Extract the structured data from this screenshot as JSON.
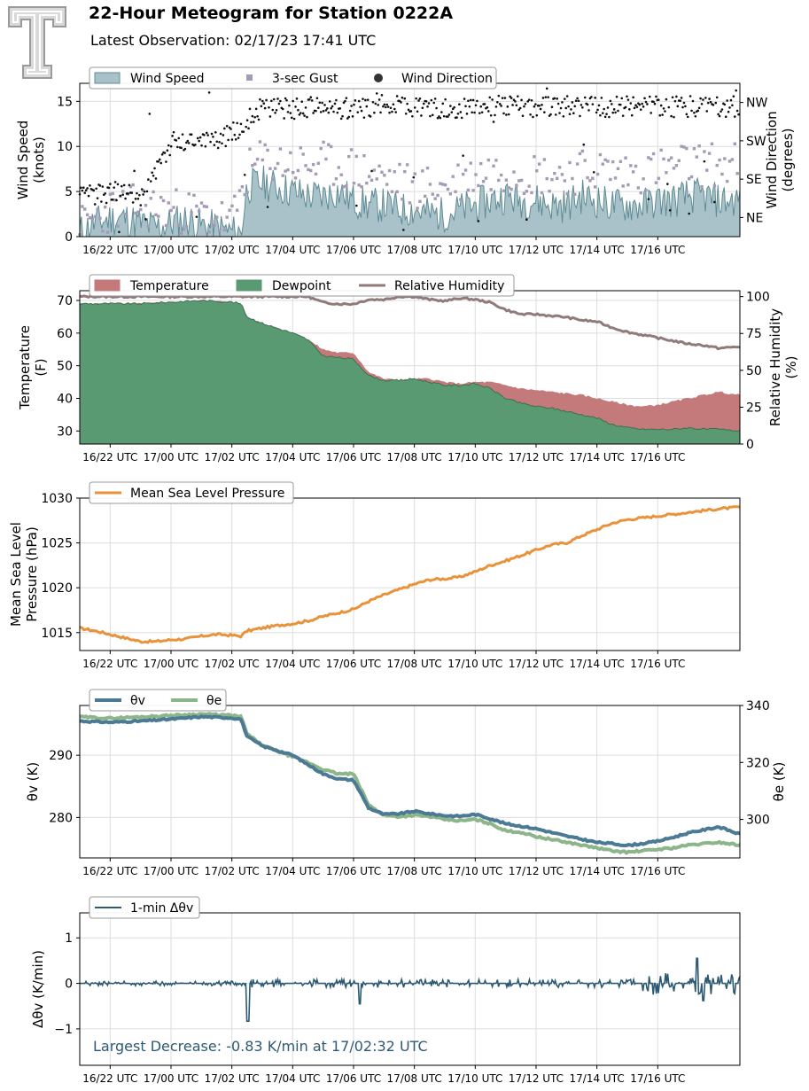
{
  "header": {
    "title": "22-Hour Meteogram for Station 0222A",
    "subtitle": "Latest Observation: 02/17/23 17:41 UTC",
    "logo_text": "T"
  },
  "time_axis": {
    "start_hour": -3.0,
    "end_hour": 18.7,
    "tick_hours": [
      -2,
      0,
      2,
      4,
      6,
      8,
      10,
      12,
      14,
      16
    ],
    "tick_labels": [
      "16/22 UTC",
      "17/00 UTC",
      "17/02 UTC",
      "17/04 UTC",
      "17/06 UTC",
      "17/08 UTC",
      "17/10 UTC",
      "17/12 UTC",
      "17/14 UTC",
      "17/16 UTC"
    ]
  },
  "chart_data": [
    {
      "type": "area",
      "id": "wind",
      "ylabel": "Wind Speed\n(knots)",
      "y2label": "Wind Direction\n(degrees)",
      "ylim": [
        0,
        17
      ],
      "yticks": [
        0,
        5,
        10,
        15
      ],
      "y2ticks": [
        {
          "label": "NE",
          "value": 45
        },
        {
          "label": "SE",
          "value": 135
        },
        {
          "label": "SW",
          "value": 225
        },
        {
          "label": "NW",
          "value": 315
        }
      ],
      "y2lim": [
        0,
        360
      ],
      "legend": [
        "Wind Speed",
        "3-sec Gust",
        "Wind Direction"
      ],
      "legend_position": "top-left",
      "colors": {
        "speed": "#a9c2c9",
        "speed_line": "#5e8b95",
        "gust": "#a49bb5",
        "direction": "#111111"
      },
      "series": [
        {
          "name": "Wind Speed",
          "x": [
            -3,
            -2.5,
            -2,
            -1.5,
            -1,
            -0.5,
            0,
            0.5,
            1,
            1.5,
            2,
            2.3,
            2.5,
            3,
            3.5,
            4,
            4.5,
            5,
            5.5,
            6,
            6.5,
            7,
            7.5,
            8,
            8.5,
            9,
            9.5,
            10,
            10.5,
            11,
            11.5,
            12,
            12.5,
            13,
            13.5,
            14,
            14.5,
            15,
            15.5,
            16,
            16.5,
            17,
            17.5,
            18,
            18.7
          ],
          "values": [
            0.5,
            1.5,
            2,
            2,
            1.5,
            1,
            1.5,
            2,
            1.2,
            1,
            0.5,
            0.5,
            5.5,
            6,
            5.5,
            5,
            4.5,
            4.5,
            5,
            4,
            3.5,
            3.5,
            3,
            3,
            2.5,
            2.5,
            3,
            3.5,
            4,
            4.5,
            4,
            4,
            3.5,
            3.5,
            4.5,
            4,
            3.5,
            3.5,
            3.5,
            4,
            4,
            4.5,
            4.5,
            4,
            4
          ]
        },
        {
          "name": "3-sec Gust",
          "x": [
            -3,
            -2,
            -1,
            0,
            1,
            2,
            2.5,
            3,
            4,
            5,
            6,
            7,
            8,
            9,
            10,
            11,
            12,
            13,
            14,
            15,
            16,
            17,
            18,
            18.7
          ],
          "values": [
            1,
            3,
            3.5,
            3,
            2.5,
            1.5,
            7,
            8.5,
            8,
            8,
            7.5,
            6.5,
            5.5,
            5.5,
            7,
            7.5,
            7,
            7,
            7.5,
            7,
            7.5,
            8,
            8,
            8
          ]
        },
        {
          "name": "Wind Direction",
          "x": [
            -3,
            -2.5,
            -2,
            -1.5,
            -1,
            -0.5,
            0,
            0.5,
            1,
            1.5,
            2,
            2.5,
            3,
            4,
            5,
            6,
            7,
            8,
            9,
            10,
            11,
            12,
            13,
            14,
            15,
            16,
            17,
            18,
            18.7
          ],
          "values": [
            90,
            100,
            105,
            100,
            95,
            150,
            220,
            225,
            230,
            230,
            240,
            275,
            305,
            300,
            305,
            300,
            310,
            305,
            300,
            305,
            310,
            305,
            305,
            305,
            305,
            305,
            305,
            305,
            305
          ]
        }
      ]
    },
    {
      "type": "area",
      "id": "temp",
      "ylabel": "Temperature\n(F)",
      "y2label": "Relative Humidity\n(%)",
      "ylim": [
        26,
        73
      ],
      "yticks": [
        30,
        40,
        50,
        60,
        70
      ],
      "y2lim": [
        0,
        104
      ],
      "y2ticks": [
        0,
        25,
        50,
        75,
        100
      ],
      "legend": [
        "Temperature",
        "Dewpoint",
        "Relative Humidity"
      ],
      "legend_position": "top-left",
      "colors": {
        "temperature": "#c47a7a",
        "dewpoint": "#5a9a72",
        "rh": "#907a7a"
      },
      "series": [
        {
          "name": "Temperature",
          "x": [
            -3,
            -2,
            -1,
            0,
            1,
            2,
            2.3,
            2.5,
            3,
            4,
            4.5,
            5,
            5.5,
            6,
            6.5,
            7,
            7.5,
            8,
            8.5,
            9,
            9.5,
            10,
            10.5,
            11,
            11.5,
            12,
            12.5,
            13,
            13.5,
            14,
            14.5,
            15,
            15.5,
            16,
            16.5,
            17,
            17.5,
            18,
            18.7
          ],
          "values": [
            69,
            69,
            69,
            69.5,
            70,
            69.5,
            69,
            65,
            63,
            60,
            58,
            55,
            54,
            54,
            48,
            46,
            45.5,
            46,
            46,
            45,
            44.5,
            45,
            45,
            44,
            43,
            42.5,
            42,
            41.5,
            41,
            40,
            39,
            38,
            37.5,
            38,
            39,
            40,
            41,
            42,
            41
          ]
        },
        {
          "name": "Dewpoint",
          "x": [
            -3,
            -2,
            -1,
            0,
            1,
            2,
            2.3,
            2.5,
            3,
            4,
            4.5,
            5,
            5.5,
            6,
            6.5,
            7,
            7.5,
            8,
            8.5,
            9,
            9.5,
            10,
            10.5,
            11,
            11.5,
            12,
            12.5,
            13,
            13.5,
            14,
            14.5,
            15,
            15.5,
            16,
            16.5,
            17,
            17.5,
            18,
            18.7
          ],
          "values": [
            69,
            69,
            69,
            69.5,
            70,
            69.5,
            69,
            65,
            63,
            60,
            58,
            53,
            52.5,
            52,
            47,
            45.5,
            45.5,
            46,
            45,
            44,
            44,
            44.5,
            43,
            40,
            38.5,
            37.5,
            37,
            36,
            35,
            34,
            32,
            31,
            30.5,
            30.5,
            30.5,
            31,
            30.5,
            30.5,
            30
          ]
        },
        {
          "name": "Relative Humidity",
          "x": [
            -3,
            -2,
            -1,
            0,
            1,
            2,
            2.3,
            2.5,
            3,
            4,
            4.5,
            5,
            5.5,
            6,
            6.5,
            7,
            7.5,
            8,
            8.5,
            9,
            9.5,
            10,
            10.5,
            11,
            11.5,
            12,
            12.5,
            13,
            13.5,
            14,
            14.5,
            15,
            15.5,
            16,
            16.5,
            17,
            17.5,
            18,
            18.7
          ],
          "values": [
            100,
            100,
            100,
            100,
            100,
            100,
            100,
            100,
            100,
            100,
            100,
            96,
            95,
            95,
            98,
            98,
            100,
            100,
            98,
            97,
            99,
            98,
            96,
            91,
            88,
            88,
            87,
            86,
            84,
            83,
            79,
            76,
            74,
            72,
            70,
            68,
            67,
            65,
            66
          ]
        }
      ]
    },
    {
      "type": "line",
      "id": "pressure",
      "ylabel": "Mean Sea Level\nPressure (hPa)",
      "ylim": [
        1013.0,
        1030.0
      ],
      "yticks": [
        1015,
        1020,
        1025,
        1030
      ],
      "legend": [
        "Mean Sea Level Pressure"
      ],
      "legend_position": "top-left",
      "colors": {
        "pressure": "#e8923a"
      },
      "series": [
        {
          "name": "Mean Sea Level Pressure",
          "x": [
            -3,
            -2.5,
            -2,
            -1.5,
            -1,
            -0.5,
            0,
            0.5,
            1,
            1.5,
            2,
            2.3,
            2.5,
            3,
            3.5,
            4,
            4.5,
            5,
            5.5,
            6,
            6.5,
            7,
            7.5,
            8,
            8.5,
            9,
            9.5,
            10,
            10.5,
            11,
            11.5,
            12,
            12.5,
            13,
            13.5,
            14,
            14.5,
            15,
            15.5,
            16,
            16.5,
            17,
            17.5,
            18,
            18.7
          ],
          "values": [
            1015.5,
            1015.2,
            1014.8,
            1014.4,
            1014.0,
            1014.0,
            1014.2,
            1014.3,
            1014.6,
            1014.8,
            1014.7,
            1014.6,
            1015.2,
            1015.5,
            1015.8,
            1016.0,
            1016.3,
            1016.8,
            1017.2,
            1017.6,
            1018.5,
            1019.2,
            1019.8,
            1020.4,
            1020.9,
            1021.0,
            1021.2,
            1021.8,
            1022.5,
            1023.0,
            1023.6,
            1024.2,
            1024.8,
            1025.0,
            1025.8,
            1026.5,
            1027.2,
            1027.6,
            1027.8,
            1028.0,
            1028.2,
            1028.4,
            1028.6,
            1028.8,
            1029.0
          ]
        }
      ]
    },
    {
      "type": "line",
      "id": "theta",
      "ylabel": "θv (K)",
      "y2label": "θe (K)",
      "ylim": [
        273.5,
        298.0
      ],
      "yticks": [
        280,
        290
      ],
      "y2lim": [
        286.5,
        340.0
      ],
      "y2ticks": [
        300,
        320,
        340
      ],
      "legend": [
        "θv",
        "θe"
      ],
      "legend_position": "top-left",
      "colors": {
        "theta_v": "#4a7a94",
        "theta_e": "#8db58a"
      },
      "series": [
        {
          "name": "θv",
          "x": [
            -3,
            -2,
            -1,
            0,
            1,
            2,
            2.3,
            2.5,
            3,
            4,
            4.5,
            5,
            5.5,
            6,
            6.5,
            7,
            7.5,
            8,
            8.5,
            9,
            9.5,
            10,
            10.5,
            11,
            11.5,
            12,
            12.5,
            13,
            13.5,
            14,
            14.5,
            15,
            15.5,
            16,
            16.5,
            17,
            17.5,
            18,
            18.7
          ],
          "values": [
            295.5,
            295.3,
            295.5,
            295.8,
            296.2,
            296.0,
            295.8,
            293.0,
            291.5,
            290.0,
            288.5,
            287.0,
            286.2,
            286.0,
            281.5,
            280.5,
            280.6,
            281.0,
            280.6,
            280.3,
            280.2,
            280.5,
            279.8,
            279.0,
            278.6,
            278.2,
            277.6,
            277.0,
            276.5,
            276.0,
            275.8,
            275.5,
            275.8,
            276.2,
            276.8,
            277.5,
            278.0,
            278.5,
            277.3
          ]
        },
        {
          "name": "θe",
          "x": [
            -3,
            -2,
            -1,
            0,
            1,
            2,
            2.3,
            2.5,
            3,
            4,
            4.5,
            5,
            5.5,
            6,
            6.5,
            7,
            7.5,
            8,
            8.5,
            9,
            9.5,
            10,
            10.5,
            11,
            11.5,
            12,
            12.5,
            13,
            13.5,
            14,
            14.5,
            15,
            15.5,
            16,
            16.5,
            17,
            17.5,
            18,
            18.7
          ],
          "values": [
            336.0,
            335.5,
            336.0,
            336.5,
            337.0,
            336.5,
            336.0,
            330.0,
            326.0,
            322.0,
            320.0,
            317.5,
            316.0,
            316.0,
            305.0,
            301.5,
            301.0,
            301.5,
            301.0,
            300.0,
            299.5,
            300.0,
            298.5,
            296.0,
            295.5,
            294.0,
            293.0,
            292.0,
            291.0,
            290.0,
            289.0,
            288.5,
            289.0,
            289.5,
            290.0,
            291.0,
            291.5,
            292.0,
            291.0
          ]
        }
      ]
    },
    {
      "type": "line",
      "id": "dtheta",
      "ylabel": "Δθv (K/min)",
      "ylim": [
        -1.8,
        1.55
      ],
      "yticks": [
        -1,
        0,
        1
      ],
      "legend": [
        "1-min Δθv"
      ],
      "legend_position": "top-left",
      "annotation": "Largest Decrease: -0.83 K/min at 17/02:32 UTC",
      "colors": {
        "dtheta": "#2d5a73",
        "annotation": "#2d5a73"
      },
      "series": [
        {
          "name": "1-min Δθv",
          "x": [
            -3,
            -2.5,
            -2,
            -1.5,
            -1,
            -0.5,
            0,
            0.5,
            1,
            1.5,
            2,
            2.3,
            2.53,
            2.6,
            3,
            3.5,
            4,
            4.5,
            5,
            5.5,
            6,
            6.2,
            6.5,
            7,
            7.5,
            8,
            8.5,
            9,
            9.5,
            10,
            10.5,
            11,
            11.5,
            12,
            12.5,
            13,
            13.5,
            14,
            14.5,
            15,
            15.5,
            16,
            16.5,
            17,
            17.3,
            17.5,
            18,
            18.7
          ],
          "values": [
            0,
            0.05,
            -0.05,
            0.05,
            0,
            -0.05,
            0.05,
            0,
            0.05,
            -0.05,
            0,
            0,
            -0.83,
            0.1,
            -0.1,
            0.08,
            -0.08,
            0.05,
            -0.1,
            0.1,
            -0.15,
            -0.4,
            0.1,
            -0.1,
            0.1,
            -0.05,
            0.05,
            -0.05,
            0.05,
            0.08,
            -0.08,
            0.05,
            -0.05,
            0.08,
            -0.05,
            0.1,
            -0.05,
            0.08,
            -0.1,
            0.15,
            -0.15,
            0.2,
            -0.2,
            0.3,
            0.55,
            -0.3,
            0.15,
            0.1
          ]
        }
      ]
    }
  ]
}
